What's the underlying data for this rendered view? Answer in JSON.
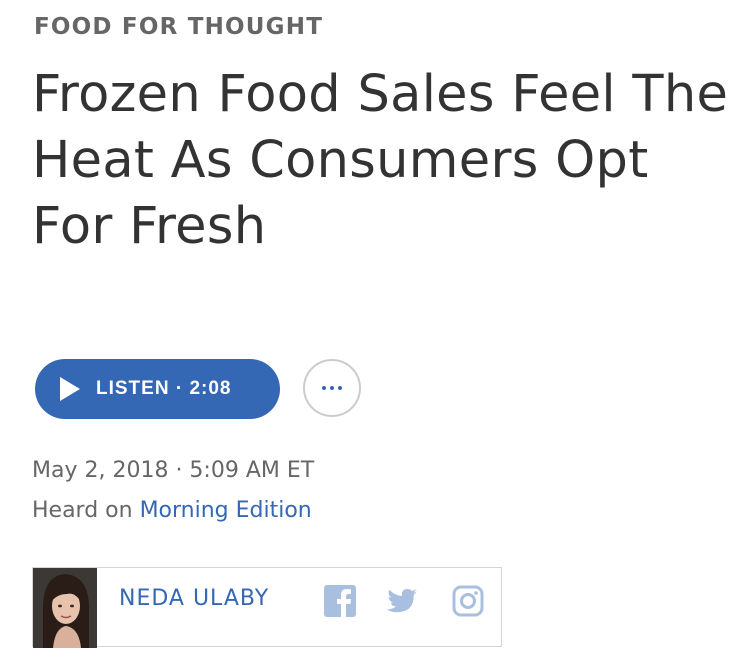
{
  "article": {
    "section": "FOOD FOR THOUGHT",
    "headline": "Frozen Food Sales Feel The Heat As Consumers Opt For Fresh",
    "listen_label": "LISTEN · 2:08",
    "more_icon": "ellipsis-icon",
    "date": "May 2, 2018 · 5:09 AM ET",
    "heard_on_prefix": "Heard on ",
    "program": "Morning Edition"
  },
  "author": {
    "name": "NEDA ULABY",
    "social_icons": [
      "facebook-icon",
      "twitter-icon",
      "instagram-icon"
    ]
  },
  "colors": {
    "accent": "#3568b4",
    "text": "#333333",
    "muted": "#666666",
    "social": "#a9bfe0"
  }
}
